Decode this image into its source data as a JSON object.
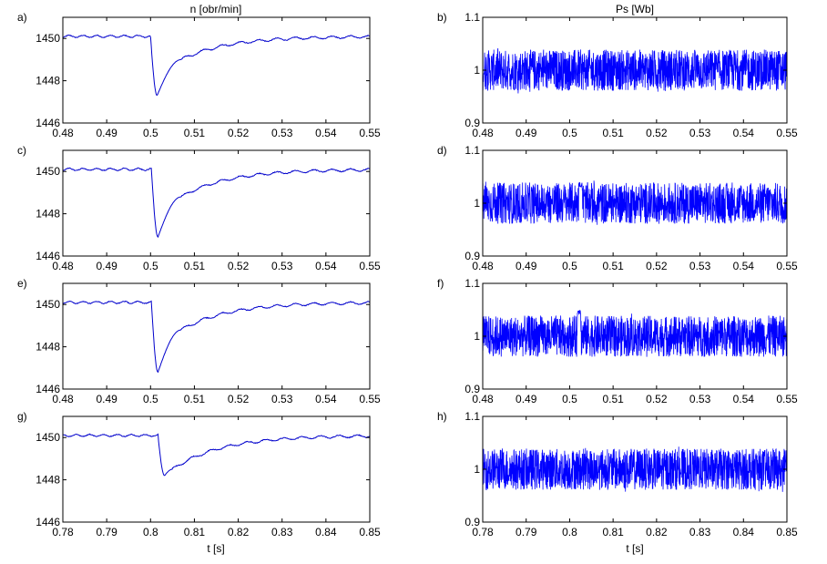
{
  "figure": {
    "left_title": "n  [obr/min]",
    "right_title": "Ps [Wb]",
    "left_xlabel": "t    [s]",
    "right_xlabel": "t    [s]"
  },
  "chart_data": [
    {
      "type": "line",
      "label": "a)",
      "x_range": [
        0.48,
        0.55
      ],
      "x_ticks": [
        "0.48",
        "0.49",
        "0.5",
        "0.51",
        "0.52",
        "0.53",
        "0.54",
        "0.55"
      ],
      "y_range": [
        1446,
        1451
      ],
      "y_ticks": [
        "1446",
        "1448",
        "1450"
      ],
      "color": "#0000cc",
      "kind": "speed",
      "dip_t": 0.5015,
      "dip_min": 1447.3,
      "baseline": 1450.1,
      "fast_rec_to": 1449.0,
      "fast_rec_t": 0.507
    },
    {
      "type": "line",
      "label": "b)",
      "x_range": [
        0.48,
        0.55
      ],
      "x_ticks": [
        "0.48",
        "0.49",
        "0.5",
        "0.51",
        "0.52",
        "0.53",
        "0.54",
        "0.55"
      ],
      "y_range": [
        0.9,
        1.1
      ],
      "y_ticks": [
        "0.9",
        "1",
        "1.1"
      ],
      "color": "#0000ff",
      "kind": "flux",
      "mean": 1.0,
      "noise_band": [
        0.97,
        1.03
      ],
      "spike": null
    },
    {
      "type": "line",
      "label": "c)",
      "x_range": [
        0.48,
        0.55
      ],
      "x_ticks": [
        "0.48",
        "0.49",
        "0.5",
        "0.51",
        "0.52",
        "0.53",
        "0.54",
        "0.55"
      ],
      "y_range": [
        1446,
        1451
      ],
      "y_ticks": [
        "1446",
        "1448",
        "1450"
      ],
      "color": "#0000cc",
      "kind": "speed",
      "dip_t": 0.5017,
      "dip_min": 1446.9,
      "baseline": 1450.1,
      "fast_rec_to": 1448.8,
      "fast_rec_t": 0.507
    },
    {
      "type": "line",
      "label": "d)",
      "x_range": [
        0.48,
        0.55
      ],
      "x_ticks": [
        "0.48",
        "0.49",
        "0.5",
        "0.51",
        "0.52",
        "0.53",
        "0.54",
        "0.55"
      ],
      "y_range": [
        0.9,
        1.1
      ],
      "y_ticks": [
        "0.9",
        "1",
        "1.1"
      ],
      "color": "#0000ff",
      "kind": "flux",
      "mean": 1.0,
      "noise_band": [
        0.97,
        1.03
      ],
      "spike": {
        "t": 0.5025,
        "value": 1.04
      }
    },
    {
      "type": "line",
      "label": "e)",
      "x_range": [
        0.48,
        0.55
      ],
      "x_ticks": [
        "0.48",
        "0.49",
        "0.5",
        "0.51",
        "0.52",
        "0.53",
        "0.54",
        "0.55"
      ],
      "y_range": [
        1446,
        1451
      ],
      "y_ticks": [
        "1446",
        "1448",
        "1450"
      ],
      "color": "#0000cc",
      "kind": "speed",
      "dip_t": 0.5017,
      "dip_min": 1446.8,
      "baseline": 1450.1,
      "fast_rec_to": 1448.8,
      "fast_rec_t": 0.507
    },
    {
      "type": "line",
      "label": "f)",
      "x_range": [
        0.48,
        0.55
      ],
      "x_ticks": [
        "0.48",
        "0.49",
        "0.5",
        "0.51",
        "0.52",
        "0.53",
        "0.54",
        "0.55"
      ],
      "y_range": [
        0.9,
        1.1
      ],
      "y_ticks": [
        "0.9",
        "1",
        "1.1"
      ],
      "color": "#0000ff",
      "kind": "flux",
      "mean": 1.0,
      "noise_band": [
        0.97,
        1.03
      ],
      "spike": {
        "t": 0.5022,
        "value": 1.05
      }
    },
    {
      "type": "line",
      "label": "g)",
      "x_range": [
        0.78,
        0.85
      ],
      "x_ticks": [
        "0.78",
        "0.79",
        "0.8",
        "0.81",
        "0.82",
        "0.83",
        "0.84",
        "0.85"
      ],
      "y_range": [
        1446,
        1451
      ],
      "y_ticks": [
        "1446",
        "1448",
        "1450"
      ],
      "color": "#0000cc",
      "kind": "speed",
      "dip_t": 0.8032,
      "dip_min": 1448.2,
      "baseline": 1450.1,
      "fast_rec_to": 1448.5,
      "fast_rec_t": 0.805
    },
    {
      "type": "line",
      "label": "h)",
      "x_range": [
        0.78,
        0.85
      ],
      "x_ticks": [
        "0.78",
        "0.79",
        "0.8",
        "0.81",
        "0.82",
        "0.83",
        "0.84",
        "0.85"
      ],
      "y_range": [
        0.9,
        1.1
      ],
      "y_ticks": [
        "0.9",
        "1",
        "1.1"
      ],
      "color": "#0000ff",
      "kind": "flux",
      "mean": 1.0,
      "noise_band": [
        0.97,
        1.03
      ],
      "spike": null
    }
  ]
}
